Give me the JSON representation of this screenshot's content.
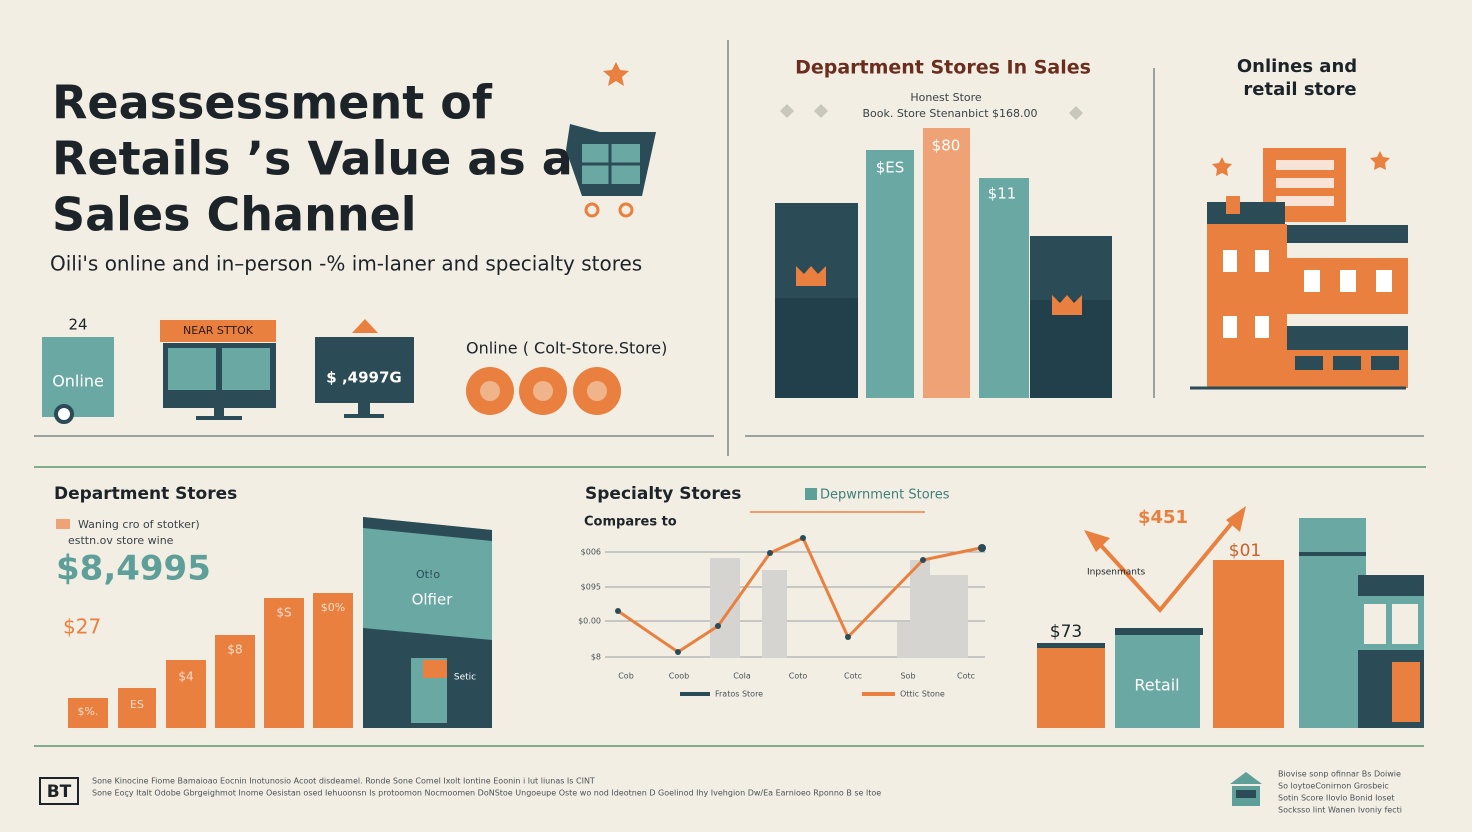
{
  "header": {
    "title_lines": [
      "Reassessment of",
      "Retails ’s Value as a",
      "Sales Channel"
    ],
    "subtitle": "Oili's online and in–person -% im-laner and specialty stores"
  },
  "channels": {
    "online_count": "24",
    "online": "Online",
    "store_sign": "NEAR STTOK",
    "price": "$ ,4997G",
    "legend": "Online ( Colt-Store.Store)"
  },
  "dept_sales": {
    "title": "Department Stores In Sales",
    "note_1": "Honest Store",
    "note_2": "Book. Store Stenanbict  $168.00",
    "bar_labels": [
      "$ES",
      "$80",
      "$11"
    ]
  },
  "online_retail": {
    "title_lines": [
      "Onlines and",
      "retail store"
    ]
  },
  "dept_stores": {
    "title": "Department Stores",
    "legend_1": "Waning cro of stotker)",
    "legend_2": "esttn.ov store wine",
    "big_value": "$8,4995",
    "small_value": "$27",
    "bar_labels": [
      "$%.",
      "ES",
      "$4",
      "$8",
      "$S",
      "$0%"
    ],
    "panel": [
      "Ot!o",
      "Olfier",
      "Setic"
    ]
  },
  "specialty": {
    "title": "Specialty Stores",
    "legend": "Depwrnment Stores",
    "subtitle": "Compares to",
    "y_labels": [
      "$006",
      "$095",
      "$0.00",
      "$8"
    ],
    "x_labels": [
      "Cob",
      "Coob",
      "Cola",
      "Coto",
      "Cotc",
      "Sob",
      "Cotc"
    ],
    "series_labels": [
      "Fratos Store",
      "Ottic Stone"
    ]
  },
  "retail_compare": {
    "top_value": "$451",
    "mid_value": "$01",
    "annotation": "Inpsenmants",
    "low_value": "$73",
    "bar_label": "Retail"
  },
  "footer": {
    "logo": "BT",
    "lines": [
      "Sone Kinocine Fiome Bamaioao Eocnin Inotunosio Acoot disdeamel. Ronde Sone Comel Ixolt Iontine Eoonin i lut liunas Is CINT",
      "Sone Eoçy Italt Odobe Gbrgeighmot Inome Oesistan osed Iehuoonsn Is protoomon Nocmoomen DoNStoe Ungoeupe Oste wo nod Ideotnen D Goelinod Ihy Ivehgion Dw/Ea Earnioeo Rponno B se ltoe"
    ],
    "side_lines": [
      "Biovise sonp ofinnar Bs Doiwie",
      "So loytoeConirnon Grosbeic",
      "Sotin Score Ilovlo Bonid Ioset",
      "Socksso lint Wanen Ivoniy fecti"
    ]
  }
}
